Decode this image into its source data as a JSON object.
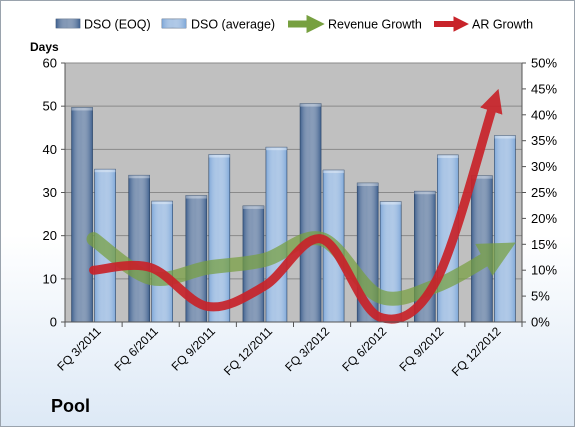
{
  "colors": {
    "plot_background": "#c0c0c0",
    "dso_eoq": "#3e5f8d",
    "dso_average": "#7ea7d8",
    "revenue_growth": "#77a040",
    "ar_growth": "#c8232a",
    "gridline": "#8a8a8a"
  },
  "chart_data": {
    "type": "bar",
    "title": "Pool",
    "ylabel": "Days",
    "categories": [
      "FQ 3/2011",
      "FQ 6/2011",
      "FQ 9/2011",
      "FQ 12/2011",
      "FQ 3/2012",
      "FQ 6/2012",
      "FQ 9/2012",
      "FQ 12/2012"
    ],
    "ylim": [
      0,
      60
    ],
    "yticks": [
      0,
      10,
      20,
      30,
      40,
      50,
      60
    ],
    "y2lim": [
      0,
      50
    ],
    "y2ticks": [
      "0%",
      "5%",
      "10%",
      "15%",
      "20%",
      "25%",
      "30%",
      "35%",
      "40%",
      "45%",
      "50%"
    ],
    "grid": true,
    "legend_position": "top",
    "series": [
      {
        "name": "DSO (EOQ)",
        "type": "bar",
        "axis": "left",
        "values": [
          49.7,
          34.0,
          29.3,
          26.9,
          50.6,
          32.2,
          30.3,
          33.9
        ]
      },
      {
        "name": "DSO (average)",
        "type": "bar",
        "axis": "left",
        "values": [
          35.4,
          28.0,
          38.8,
          40.5,
          35.2,
          27.9,
          38.7,
          43.2
        ]
      },
      {
        "name": "Revenue Growth",
        "type": "line-arrow",
        "axis": "right",
        "unit": "%",
        "values": [
          16,
          8.5,
          10.5,
          12,
          16,
          5,
          7,
          13
        ]
      },
      {
        "name": "AR Growth",
        "type": "line-arrow",
        "axis": "right",
        "unit": "%",
        "values": [
          10,
          10.5,
          3,
          7,
          16,
          1,
          8,
          42
        ]
      }
    ]
  }
}
